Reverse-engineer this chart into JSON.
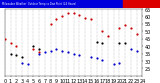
{
  "title_text": "Milwaukee Weather  Outdoor Temp vs Dew Point (24 Hours)",
  "temp_color": "#cc0000",
  "dew_color": "#0000cc",
  "black_color": "#000000",
  "background_color": "#ffffff",
  "grid_color": "#888888",
  "ylim": [
    20,
    65
  ],
  "xlim": [
    0,
    24
  ],
  "ytick_vals": [
    25,
    30,
    35,
    40,
    45,
    50,
    55,
    60,
    65
  ],
  "xtick_vals": [
    0,
    1,
    2,
    3,
    4,
    5,
    6,
    7,
    8,
    9,
    10,
    11,
    12,
    13,
    14,
    15,
    16,
    17,
    18,
    19,
    20,
    21,
    22,
    23,
    24
  ],
  "temp_data": [
    [
      0,
      45
    ],
    [
      1,
      42
    ],
    [
      2,
      40
    ],
    [
      5,
      38
    ],
    [
      6,
      36
    ],
    [
      8,
      55
    ],
    [
      9,
      58
    ],
    [
      10,
      60
    ],
    [
      11,
      62
    ],
    [
      12,
      62
    ],
    [
      13,
      61
    ],
    [
      14,
      59
    ],
    [
      15,
      58
    ],
    [
      17,
      50
    ],
    [
      18,
      47
    ],
    [
      20,
      52
    ],
    [
      21,
      54
    ],
    [
      22,
      52
    ],
    [
      23,
      48
    ]
  ],
  "dew_data": [
    [
      3,
      29
    ],
    [
      4,
      28
    ],
    [
      6,
      35
    ],
    [
      7,
      36
    ],
    [
      8,
      37
    ],
    [
      9,
      38
    ],
    [
      10,
      37
    ],
    [
      11,
      36
    ],
    [
      12,
      35
    ],
    [
      13,
      34
    ],
    [
      15,
      33
    ],
    [
      16,
      32
    ],
    [
      17,
      31
    ],
    [
      19,
      28
    ],
    [
      20,
      29
    ],
    [
      22,
      38
    ],
    [
      23,
      37
    ]
  ],
  "black_data": [
    [
      1,
      35
    ],
    [
      2,
      34
    ],
    [
      3,
      33
    ],
    [
      5,
      40
    ],
    [
      6,
      38
    ],
    [
      16,
      43
    ],
    [
      17,
      42
    ],
    [
      20,
      42
    ],
    [
      21,
      42
    ]
  ],
  "title_bar_blue": "#0000dd",
  "title_bar_red": "#dd0000",
  "marker_size": 2.5,
  "tick_fontsize": 3.5
}
